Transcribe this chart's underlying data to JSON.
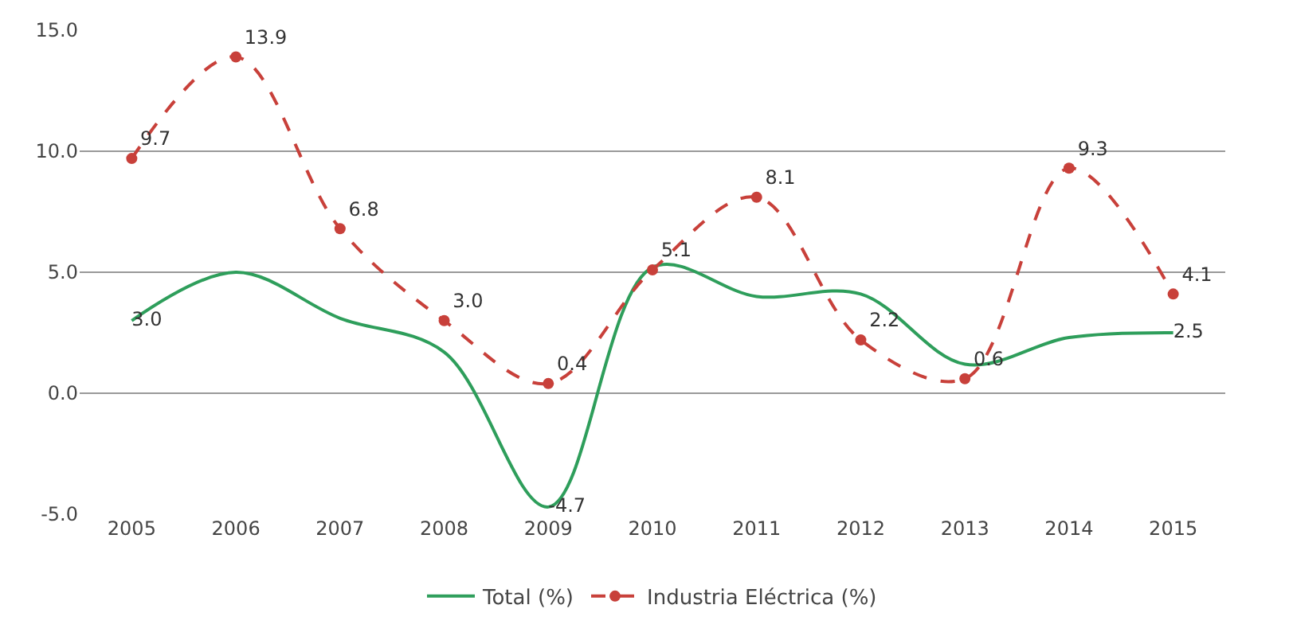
{
  "chart_data": {
    "type": "line",
    "categories": [
      "2005",
      "2006",
      "2007",
      "2008",
      "2009",
      "2010",
      "2011",
      "2012",
      "2013",
      "2014",
      "2015"
    ],
    "series": [
      {
        "name": "Total (%)",
        "color": "#2e9e5b",
        "line_style": "solid",
        "marker": "none",
        "values": [
          3.0,
          5.0,
          3.1,
          1.7,
          -4.7,
          5.2,
          4.0,
          4.1,
          1.2,
          2.3,
          2.5
        ],
        "value_labels": [
          "3.0",
          null,
          null,
          null,
          "-4.7",
          null,
          null,
          null,
          null,
          null,
          "2.5"
        ]
      },
      {
        "name": "Industria Eléctrica (%)",
        "color": "#c8403a",
        "line_style": "dashed",
        "marker": "circle",
        "values": [
          9.7,
          13.9,
          6.8,
          3.0,
          0.4,
          5.1,
          8.1,
          2.2,
          0.6,
          9.3,
          4.1
        ],
        "value_labels": [
          "9.7",
          "13.9",
          "6.8",
          "3.0",
          "0.4",
          "5.1",
          "8.1",
          "2.2",
          "0.6",
          "9.3",
          "4.1"
        ]
      }
    ],
    "ylim": [
      -5,
      15
    ],
    "yticks": [
      {
        "value": -5,
        "label": "-5.0"
      },
      {
        "value": 0,
        "label": "0.0"
      },
      {
        "value": 5,
        "label": "5.0"
      },
      {
        "value": 10,
        "label": "10.0"
      },
      {
        "value": 15,
        "label": "15.0"
      }
    ],
    "grid": "y",
    "legend": "bottom"
  }
}
